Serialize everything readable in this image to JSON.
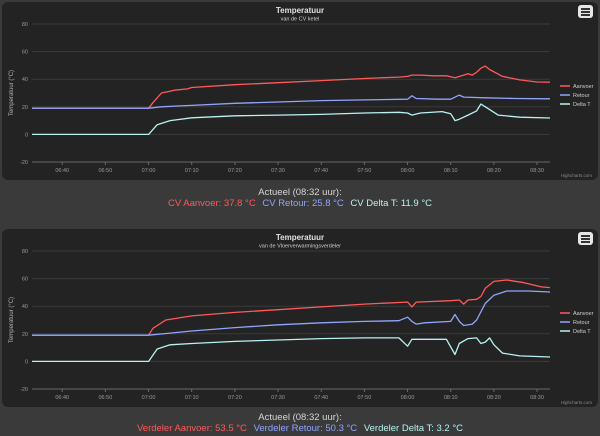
{
  "charts": [
    {
      "title": "Temperatuur",
      "subtitle": "van de CV ketel",
      "credits": "Highcharts.com",
      "readout": {
        "title": "Actueel (08:32 uur):",
        "items": [
          {
            "label": "CV Aanvoer: 37.8 °C",
            "color": "#ff5a5a"
          },
          {
            "label": "CV Retour: 25.8 °C",
            "color": "#8fa5ff"
          },
          {
            "label": "CV Delta T: 11.9 °C",
            "color": "#b8f2f0"
          }
        ]
      }
    },
    {
      "title": "Temperatuur",
      "subtitle": "van de Vloerverwarmingsverdeler",
      "credits": "Highcharts.com",
      "readout": {
        "title": "Actueel (08:32 uur):",
        "items": [
          {
            "label": "Verdeler Aanvoer: 53.5 °C",
            "color": "#ff5a5a"
          },
          {
            "label": "Verdeler Retour: 50.3 °C",
            "color": "#8fa5ff"
          },
          {
            "label": "Verdeler Delta T: 3.2 °C",
            "color": "#b8f2f0"
          }
        ]
      }
    }
  ],
  "chart_data": [
    {
      "type": "line",
      "title": "Temperatuur",
      "subtitle": "van de CV ketel",
      "ylabel": "Temperatuur (°C)",
      "xlabel": "",
      "ylim": [
        -20,
        80
      ],
      "yticks": [
        -20,
        0,
        20,
        40,
        60,
        80
      ],
      "xlim": [
        "06:33",
        "08:33"
      ],
      "xticks": [
        "06:40",
        "06:50",
        "07:00",
        "07:10",
        "07:20",
        "07:30",
        "07:40",
        "07:50",
        "08:00",
        "08:10",
        "08:20",
        "08:30"
      ],
      "grid": true,
      "legend_position": "right",
      "series": [
        {
          "name": "Aanvoer",
          "color": "#ff5a5a",
          "points": [
            [
              "06:33",
              19
            ],
            [
              "06:58",
              19
            ],
            [
              "07:00",
              19
            ],
            [
              "07:01",
              23
            ],
            [
              "07:03",
              30
            ],
            [
              "07:06",
              32
            ],
            [
              "07:09",
              33
            ],
            [
              "07:10",
              34
            ],
            [
              "07:20",
              36
            ],
            [
              "07:30",
              37.5
            ],
            [
              "07:40",
              39
            ],
            [
              "07:50",
              40.5
            ],
            [
              "07:58",
              41.5
            ],
            [
              "08:00",
              42
            ],
            [
              "08:01",
              43
            ],
            [
              "08:03",
              43
            ],
            [
              "08:06",
              42.5
            ],
            [
              "08:09",
              42.5
            ],
            [
              "08:11",
              41
            ],
            [
              "08:13",
              43
            ],
            [
              "08:14",
              44
            ],
            [
              "08:15",
              43
            ],
            [
              "08:16",
              45
            ],
            [
              "08:17",
              48
            ],
            [
              "08:18",
              49.5
            ],
            [
              "08:19",
              47
            ],
            [
              "08:22",
              42
            ],
            [
              "08:26",
              39.5
            ],
            [
              "08:30",
              38
            ],
            [
              "08:33",
              37.8
            ]
          ]
        },
        {
          "name": "Retour",
          "color": "#8fa5ff",
          "points": [
            [
              "06:33",
              19
            ],
            [
              "07:00",
              19
            ],
            [
              "07:03",
              20
            ],
            [
              "07:06",
              20.5
            ],
            [
              "07:10",
              21
            ],
            [
              "07:20",
              22.5
            ],
            [
              "07:30",
              23.5
            ],
            [
              "07:40",
              24.5
            ],
            [
              "07:50",
              25
            ],
            [
              "08:00",
              25.5
            ],
            [
              "08:01",
              28
            ],
            [
              "08:02",
              26
            ],
            [
              "08:07",
              25.5
            ],
            [
              "08:10",
              25.5
            ],
            [
              "08:12",
              28.5
            ],
            [
              "08:13",
              27
            ],
            [
              "08:18",
              26.5
            ],
            [
              "08:25",
              26
            ],
            [
              "08:33",
              25.8
            ]
          ]
        },
        {
          "name": "Delta T",
          "color": "#b8f2f0",
          "points": [
            [
              "06:33",
              0
            ],
            [
              "06:59",
              0
            ],
            [
              "07:00",
              0
            ],
            [
              "07:02",
              7
            ],
            [
              "07:05",
              10
            ],
            [
              "07:10",
              12
            ],
            [
              "07:20",
              13.5
            ],
            [
              "07:30",
              14
            ],
            [
              "07:40",
              14.5
            ],
            [
              "07:50",
              15.5
            ],
            [
              "07:58",
              16
            ],
            [
              "08:00",
              15.5
            ],
            [
              "08:01",
              14
            ],
            [
              "08:03",
              15.5
            ],
            [
              "08:08",
              16.5
            ],
            [
              "08:10",
              15
            ],
            [
              "08:11",
              10
            ],
            [
              "08:12",
              11
            ],
            [
              "08:14",
              14
            ],
            [
              "08:16",
              17
            ],
            [
              "08:17",
              22
            ],
            [
              "08:18",
              20
            ],
            [
              "08:21",
              14
            ],
            [
              "08:26",
              12.5
            ],
            [
              "08:33",
              11.9
            ]
          ]
        }
      ]
    },
    {
      "type": "line",
      "title": "Temperatuur",
      "subtitle": "van de Vloerverwarmingsverdeler",
      "ylabel": "Temperatuur (°C)",
      "xlabel": "",
      "ylim": [
        -20,
        80
      ],
      "yticks": [
        -20,
        0,
        20,
        40,
        60,
        80
      ],
      "xlim": [
        "06:33",
        "08:33"
      ],
      "xticks": [
        "06:40",
        "06:50",
        "07:00",
        "07:10",
        "07:20",
        "07:30",
        "07:40",
        "07:50",
        "08:00",
        "08:10",
        "08:20",
        "08:30"
      ],
      "grid": true,
      "legend_position": "right",
      "series": [
        {
          "name": "Aanvoer",
          "color": "#ff5a5a",
          "points": [
            [
              "06:33",
              19
            ],
            [
              "07:00",
              19
            ],
            [
              "07:01",
              24
            ],
            [
              "07:04",
              30
            ],
            [
              "07:10",
              33
            ],
            [
              "07:20",
              35.5
            ],
            [
              "07:30",
              37.5
            ],
            [
              "07:40",
              39.5
            ],
            [
              "07:50",
              41.5
            ],
            [
              "08:00",
              43
            ],
            [
              "08:01",
              39.5
            ],
            [
              "08:02",
              43
            ],
            [
              "08:10",
              44
            ],
            [
              "08:12",
              44.5
            ],
            [
              "08:13",
              41.5
            ],
            [
              "08:14",
              44.5
            ],
            [
              "08:16",
              45
            ],
            [
              "08:17",
              47
            ],
            [
              "08:18",
              53
            ],
            [
              "08:20",
              58
            ],
            [
              "08:23",
              59
            ],
            [
              "08:27",
              57
            ],
            [
              "08:31",
              54
            ],
            [
              "08:33",
              53.5
            ]
          ]
        },
        {
          "name": "Retour",
          "color": "#8fa5ff",
          "points": [
            [
              "06:33",
              19
            ],
            [
              "07:00",
              19
            ],
            [
              "07:05",
              20.5
            ],
            [
              "07:10",
              22
            ],
            [
              "07:20",
              24.5
            ],
            [
              "07:30",
              26.5
            ],
            [
              "07:40",
              28
            ],
            [
              "07:50",
              29
            ],
            [
              "07:58",
              29.5
            ],
            [
              "08:00",
              32
            ],
            [
              "08:01",
              29
            ],
            [
              "08:02",
              27
            ],
            [
              "08:04",
              28
            ],
            [
              "08:10",
              29
            ],
            [
              "08:11",
              34
            ],
            [
              "08:12",
              29
            ],
            [
              "08:13",
              26
            ],
            [
              "08:15",
              27
            ],
            [
              "08:16",
              30
            ],
            [
              "08:18",
              42
            ],
            [
              "08:20",
              48
            ],
            [
              "08:23",
              51
            ],
            [
              "08:28",
              51
            ],
            [
              "08:33",
              50.3
            ]
          ]
        },
        {
          "name": "Delta T",
          "color": "#b8f2f0",
          "points": [
            [
              "06:33",
              0
            ],
            [
              "07:00",
              0
            ],
            [
              "07:02",
              9
            ],
            [
              "07:05",
              12
            ],
            [
              "07:10",
              13
            ],
            [
              "07:20",
              14.5
            ],
            [
              "07:30",
              15.5
            ],
            [
              "07:40",
              16.5
            ],
            [
              "07:50",
              17
            ],
            [
              "07:58",
              17
            ],
            [
              "08:00",
              11
            ],
            [
              "08:01",
              16
            ],
            [
              "08:05",
              16
            ],
            [
              "08:09",
              16
            ],
            [
              "08:11",
              5
            ],
            [
              "08:12",
              13
            ],
            [
              "08:14",
              16.5
            ],
            [
              "08:16",
              17
            ],
            [
              "08:17",
              13
            ],
            [
              "08:18",
              14
            ],
            [
              "08:19",
              17
            ],
            [
              "08:20",
              12
            ],
            [
              "08:22",
              6
            ],
            [
              "08:26",
              4
            ],
            [
              "08:33",
              3.2
            ]
          ]
        }
      ]
    }
  ]
}
